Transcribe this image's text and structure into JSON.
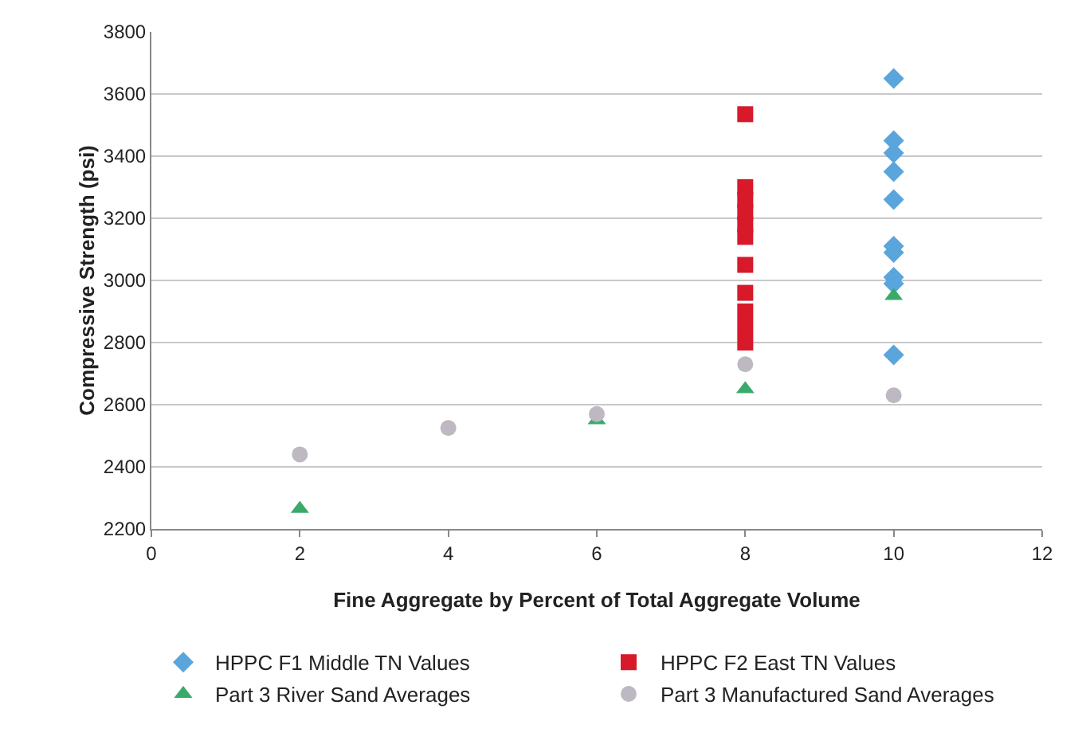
{
  "chart_data": {
    "type": "scatter",
    "xlabel": "Fine Aggregate by Percent of Total Aggregate Volume",
    "ylabel": "Compressive Strength (psi)",
    "xlim": [
      0,
      12
    ],
    "xticks": [
      0,
      2,
      4,
      6,
      8,
      10,
      12
    ],
    "ylim": [
      2200,
      3800
    ],
    "yticks": [
      2200,
      2400,
      2600,
      2800,
      3000,
      3200,
      3400,
      3600,
      3800
    ],
    "grid": "y",
    "legend": "bottom",
    "series": [
      {
        "name": "HPPC F1 Middle TN Values",
        "color": "#5aa5dc",
        "marker": "diamond",
        "x": [
          10,
          10,
          10,
          10,
          10,
          10,
          10,
          10,
          10,
          10
        ],
        "values": [
          3650,
          3450,
          3410,
          3350,
          3260,
          3110,
          3090,
          3010,
          2990,
          2760
        ]
      },
      {
        "name": "HPPC F2 East TN Values",
        "color": "#d7192a",
        "marker": "square",
        "x": [
          8,
          8,
          8,
          8,
          8,
          8,
          8,
          8,
          8,
          8,
          8
        ],
        "values": [
          3535,
          3300,
          3260,
          3220,
          3180,
          3140,
          3050,
          2960,
          2900,
          2850,
          2800
        ]
      },
      {
        "name": "Part 3 River Sand Averages",
        "color": "#3aaa6a",
        "marker": "triangle",
        "x": [
          2,
          4,
          6,
          8,
          10
        ],
        "values": [
          2265,
          null,
          2550,
          2650,
          2950
        ]
      },
      {
        "name": "Part 3 Manufactured Sand Averages",
        "color": "#bdb8c2",
        "marker": "circle",
        "x": [
          2,
          4,
          6,
          8,
          10
        ],
        "values": [
          2440,
          2525,
          2570,
          2730,
          2630
        ]
      }
    ]
  }
}
